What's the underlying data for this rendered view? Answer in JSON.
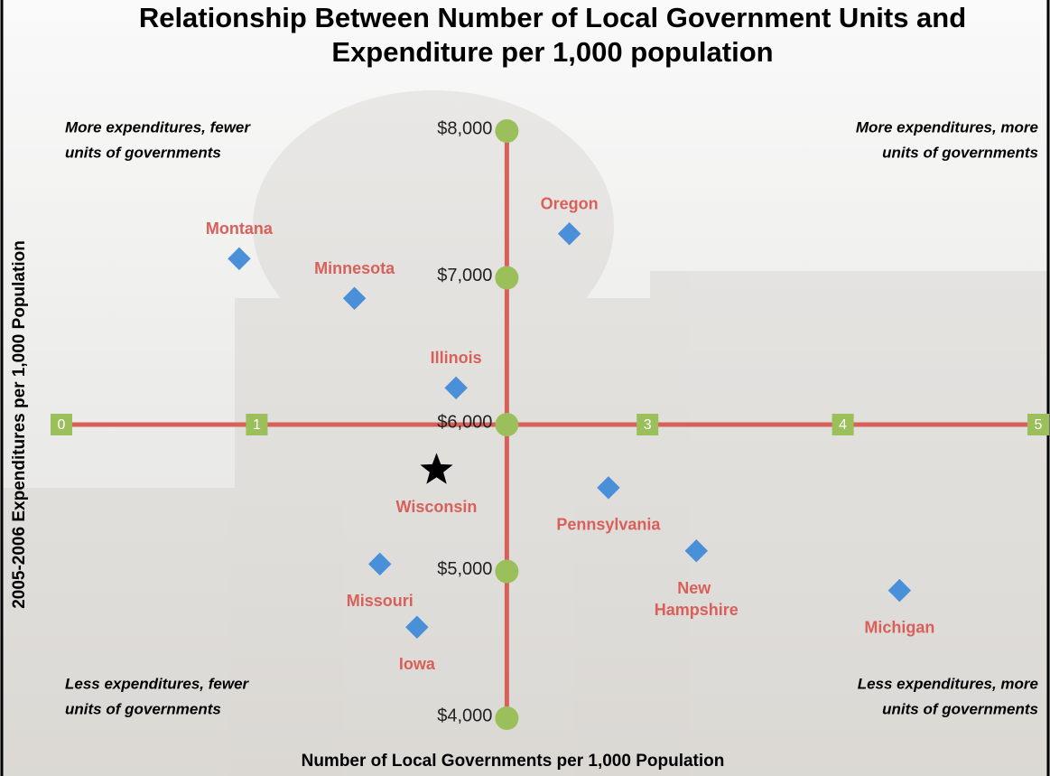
{
  "chart_data": {
    "type": "scatter",
    "title": [
      "Relationship Between Number of Local Government Units and",
      "Expenditure per 1,000 population"
    ],
    "x_label": "Number of Local Governments  per 1,000 Population",
    "y_label": "2005-2006  Expenditures  per 1,000 Population",
    "quadrants": {
      "top_left": [
        "More expenditures, fewer",
        "units of governments"
      ],
      "top_right": [
        "More expenditures, more",
        "units of governments"
      ],
      "bottom_left": [
        "Less expenditures, fewer",
        "units of governments"
      ],
      "bottom_right": [
        "Less expenditures, more",
        "units of governments"
      ]
    },
    "xlim": [
      0,
      5
    ],
    "xticks": [
      0,
      1,
      3,
      4,
      5
    ],
    "ylim": [
      4000,
      8000
    ],
    "yticks": [
      {
        "value": 8000,
        "label": "$8,000"
      },
      {
        "value": 7000,
        "label": "$7,000"
      },
      {
        "value": 6000,
        "label": "$6,000"
      },
      {
        "value": 5000,
        "label": "$5,000"
      },
      {
        "value": 4000,
        "label": "$4,000"
      }
    ],
    "vertical_axis_x": 2.28,
    "horizontal_axis_y": 6000,
    "color": "#4a90d9",
    "label_color": "#d9605a",
    "axis_color": "#d9605a",
    "tick_color": "#9bbf5a",
    "highlight_index": 4,
    "points": [
      {
        "label": "Montana",
        "x": 0.91,
        "y": 7130
      },
      {
        "label": "Minnesota",
        "x": 1.5,
        "y": 6860
      },
      {
        "label": "Oregon",
        "x": 2.6,
        "y": 7300
      },
      {
        "label": "Illinois",
        "x": 2.02,
        "y": 6250
      },
      {
        "label": "Wisconsin",
        "x": 1.92,
        "y": 5690
      },
      {
        "label": "Pennsylvania",
        "x": 2.8,
        "y": 5570
      },
      {
        "label": "New Hampshire",
        "x": 3.25,
        "y": 5140
      },
      {
        "label": "Michigan",
        "x": 4.29,
        "y": 4870
      },
      {
        "label": "Missouri",
        "x": 1.63,
        "y": 5050
      },
      {
        "label": "Iowa",
        "x": 1.82,
        "y": 4620
      }
    ]
  }
}
